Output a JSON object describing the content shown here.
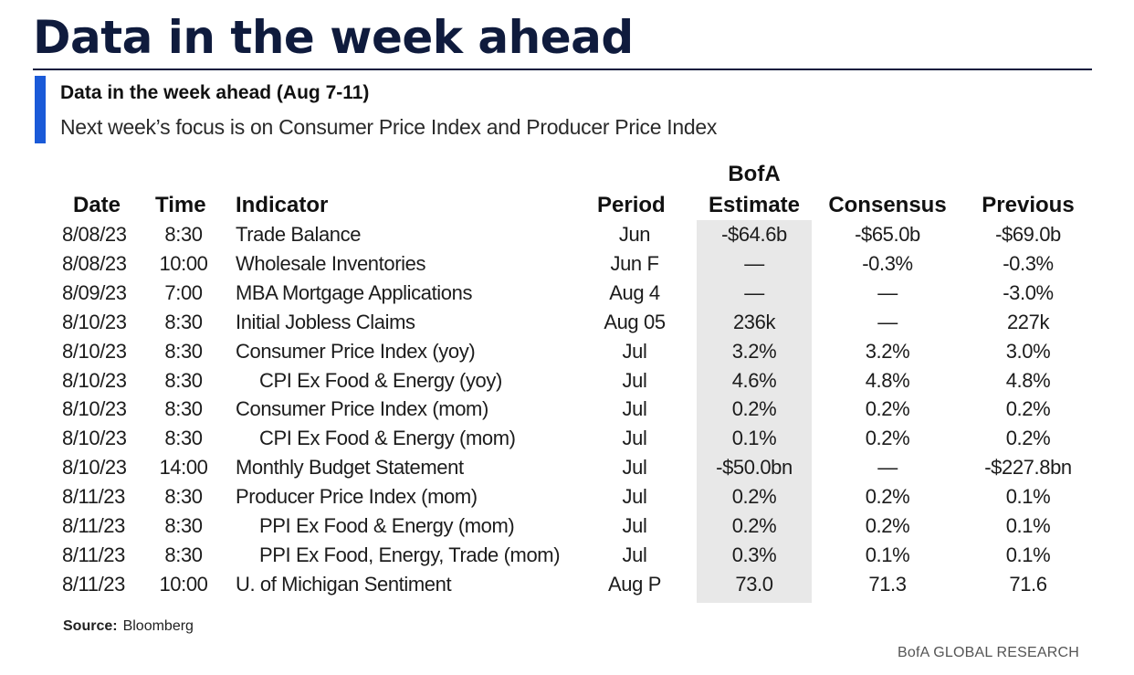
{
  "title": "Data in the week ahead",
  "subtitle": "Data in the week ahead (Aug 7-11)",
  "description": "Next week’s focus is on Consumer Price Index and Producer Price Index",
  "highlight_color": "#e8e8e8",
  "accent_color": "#1a5ad8",
  "title_color": "#0f1b3d",
  "table": {
    "headers": {
      "date": "Date",
      "time": "Time",
      "indicator": "Indicator",
      "period": "Period",
      "bofa_line1": "BofA",
      "bofa_line2": "Estimate",
      "consensus": "Consensus",
      "previous": "Previous"
    },
    "rows": [
      {
        "date": "8/08/23",
        "time": "8:30",
        "indicator": "Trade Balance",
        "indent": false,
        "period": "Jun",
        "bofa": "-$64.6b",
        "consensus": "-$65.0b",
        "previous": "-$69.0b"
      },
      {
        "date": "8/08/23",
        "time": "10:00",
        "indicator": "Wholesale Inventories",
        "indent": false,
        "period": "Jun F",
        "bofa": "—",
        "consensus": "-0.3%",
        "previous": "-0.3%"
      },
      {
        "date": "8/09/23",
        "time": "7:00",
        "indicator": "MBA Mortgage Applications",
        "indent": false,
        "period": "Aug 4",
        "bofa": "—",
        "consensus": "—",
        "previous": "-3.0%"
      },
      {
        "date": "8/10/23",
        "time": "8:30",
        "indicator": "Initial Jobless Claims",
        "indent": false,
        "period": "Aug 05",
        "bofa": "236k",
        "consensus": "—",
        "previous": "227k"
      },
      {
        "date": "8/10/23",
        "time": "8:30",
        "indicator": "Consumer Price Index (yoy)",
        "indent": false,
        "period": "Jul",
        "bofa": "3.2%",
        "consensus": "3.2%",
        "previous": "3.0%"
      },
      {
        "date": "8/10/23",
        "time": "8:30",
        "indicator": "CPI Ex Food & Energy (yoy)",
        "indent": true,
        "period": "Jul",
        "bofa": "4.6%",
        "consensus": "4.8%",
        "previous": "4.8%"
      },
      {
        "date": "8/10/23",
        "time": "8:30",
        "indicator": "Consumer Price Index (mom)",
        "indent": false,
        "period": "Jul",
        "bofa": "0.2%",
        "consensus": "0.2%",
        "previous": "0.2%"
      },
      {
        "date": "8/10/23",
        "time": "8:30",
        "indicator": "CPI Ex Food & Energy (mom)",
        "indent": true,
        "period": "Jul",
        "bofa": "0.1%",
        "consensus": "0.2%",
        "previous": "0.2%"
      },
      {
        "date": "8/10/23",
        "time": "14:00",
        "indicator": "Monthly Budget Statement",
        "indent": false,
        "period": "Jul",
        "bofa": "-$50.0bn",
        "consensus": "—",
        "previous": "-$227.8bn"
      },
      {
        "date": "8/11/23",
        "time": "8:30",
        "indicator": "Producer Price Index (mom)",
        "indent": false,
        "period": "Jul",
        "bofa": "0.2%",
        "consensus": "0.2%",
        "previous": "0.1%"
      },
      {
        "date": "8/11/23",
        "time": "8:30",
        "indicator": "PPI Ex Food & Energy (mom)",
        "indent": true,
        "period": "Jul",
        "bofa": "0.2%",
        "consensus": "0.2%",
        "previous": "0.1%"
      },
      {
        "date": "8/11/23",
        "time": "8:30",
        "indicator": "PPI Ex Food, Energy, Trade (mom)",
        "indent": true,
        "period": "Jul",
        "bofa": "0.3%",
        "consensus": "0.1%",
        "previous": "0.1%"
      },
      {
        "date": "8/11/23",
        "time": "10:00",
        "indicator": "U. of Michigan Sentiment",
        "indent": false,
        "period": "Aug P",
        "bofa": "73.0",
        "consensus": "71.3",
        "previous": "71.6"
      }
    ]
  },
  "source": {
    "label": "Source:",
    "value": "Bloomberg"
  },
  "footer": "BofA GLOBAL RESEARCH"
}
